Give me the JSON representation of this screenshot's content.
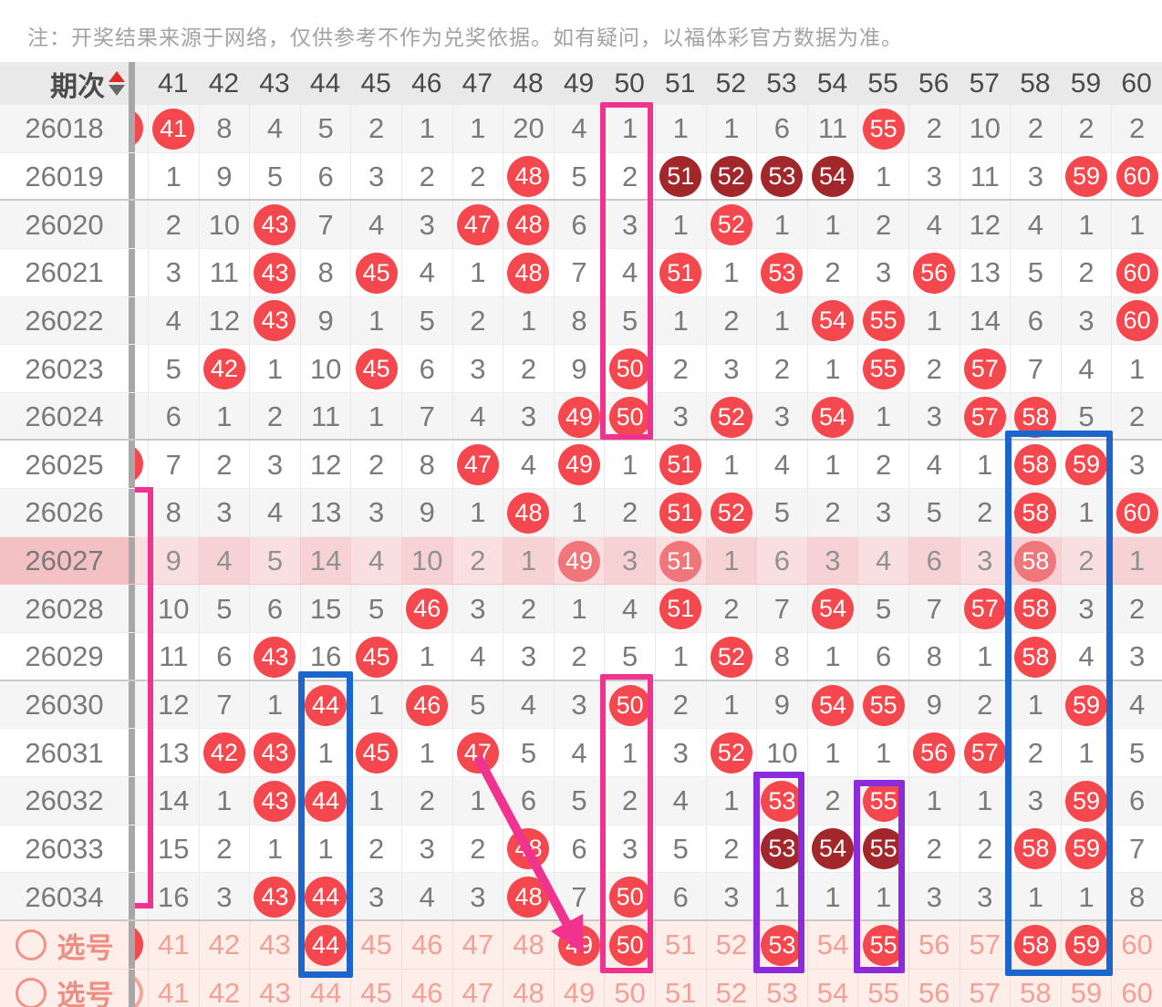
{
  "note": "注：开奖结果来源于网络，仅供参考不作为兑奖依据。如有疑问，以福体彩官方数据为准。",
  "header": {
    "period_label": "期次",
    "sort_icons": [
      "sort-up-icon",
      "sort-down-icon"
    ],
    "columns": [
      "41",
      "42",
      "43",
      "44",
      "45",
      "46",
      "47",
      "48",
      "49",
      "50",
      "51",
      "52",
      "53",
      "54",
      "55",
      "56",
      "57",
      "58",
      "59",
      "60"
    ]
  },
  "legend": {
    "hit_note": "h = drawn number (red circle)",
    "dark_note": "d = consecutive drawn number (dark red circle)"
  },
  "rows": [
    {
      "period": "26018",
      "pre": "hit",
      "cells": [
        "h41",
        "8",
        "4",
        "5",
        "2",
        "1",
        "1",
        "20",
        "4",
        "1",
        "1",
        "1",
        "6",
        "11",
        "h55",
        "2",
        "10",
        "2",
        "2",
        "2"
      ]
    },
    {
      "period": "26019",
      "group_end": true,
      "cells": [
        "1",
        "9",
        "5",
        "6",
        "3",
        "2",
        "2",
        "h48",
        "5",
        "2",
        "d51",
        "d52",
        "d53",
        "d54",
        "1",
        "3",
        "11",
        "3",
        "h59",
        "h60"
      ]
    },
    {
      "period": "26020",
      "cells": [
        "2",
        "10",
        "h43",
        "7",
        "4",
        "3",
        "h47",
        "h48",
        "6",
        "3",
        "1",
        "h52",
        "1",
        "1",
        "2",
        "4",
        "12",
        "4",
        "1",
        "1"
      ]
    },
    {
      "period": "26021",
      "cells": [
        "3",
        "11",
        "h43",
        "8",
        "h45",
        "4",
        "1",
        "h48",
        "7",
        "4",
        "h51",
        "1",
        "h53",
        "2",
        "3",
        "h56",
        "13",
        "5",
        "2",
        "h60"
      ]
    },
    {
      "period": "26022",
      "cells": [
        "4",
        "12",
        "h43",
        "9",
        "1",
        "5",
        "2",
        "1",
        "8",
        "5",
        "1",
        "2",
        "1",
        "h54",
        "h55",
        "1",
        "14",
        "6",
        "3",
        "h60"
      ]
    },
    {
      "period": "26023",
      "cells": [
        "5",
        "h42",
        "1",
        "10",
        "h45",
        "6",
        "3",
        "2",
        "9",
        "h50",
        "2",
        "3",
        "2",
        "1",
        "h55",
        "2",
        "h57",
        "7",
        "4",
        "1"
      ]
    },
    {
      "period": "26024",
      "group_end": true,
      "cells": [
        "6",
        "1",
        "2",
        "11",
        "1",
        "7",
        "4",
        "3",
        "h49",
        "h50",
        "3",
        "h52",
        "3",
        "h54",
        "1",
        "3",
        "h57",
        "h58",
        "5",
        "2"
      ]
    },
    {
      "period": "26025",
      "pre": "hit",
      "cells": [
        "7",
        "2",
        "3",
        "12",
        "2",
        "8",
        "h47",
        "4",
        "h49",
        "1",
        "h51",
        "1",
        "4",
        "1",
        "2",
        "4",
        "1",
        "h58",
        "h59",
        "3"
      ]
    },
    {
      "period": "26026",
      "cells": [
        "8",
        "3",
        "4",
        "13",
        "3",
        "9",
        "1",
        "h48",
        "1",
        "2",
        "h51",
        "h52",
        "5",
        "2",
        "3",
        "5",
        "2",
        "h58",
        "1",
        "h60"
      ]
    },
    {
      "period": "26027",
      "highlight": true,
      "cells": [
        "9",
        "4",
        "5",
        "14",
        "4",
        "10",
        "2",
        "1",
        "h49",
        "3",
        "h51",
        "1",
        "6",
        "3",
        "4",
        "6",
        "3",
        "h58",
        "2",
        "1"
      ]
    },
    {
      "period": "26028",
      "cells": [
        "10",
        "5",
        "6",
        "15",
        "5",
        "h46",
        "3",
        "2",
        "1",
        "4",
        "h51",
        "2",
        "7",
        "h54",
        "5",
        "7",
        "h57",
        "h58",
        "3",
        "2"
      ]
    },
    {
      "period": "26029",
      "group_end": true,
      "cells": [
        "11",
        "6",
        "h43",
        "16",
        "h45",
        "1",
        "4",
        "3",
        "2",
        "5",
        "1",
        "h52",
        "8",
        "1",
        "6",
        "8",
        "1",
        "h58",
        "4",
        "3"
      ]
    },
    {
      "period": "26030",
      "cells": [
        "12",
        "7",
        "1",
        "h44",
        "1",
        "h46",
        "5",
        "4",
        "3",
        "h50",
        "2",
        "1",
        "9",
        "h54",
        "h55",
        "9",
        "2",
        "1",
        "h59",
        "4"
      ]
    },
    {
      "period": "26031",
      "cells": [
        "13",
        "h42",
        "h43",
        "1",
        "h45",
        "1",
        "h47",
        "5",
        "4",
        "1",
        "3",
        "h52",
        "10",
        "1",
        "1",
        "h56",
        "h57",
        "2",
        "1",
        "5"
      ]
    },
    {
      "period": "26032",
      "cells": [
        "14",
        "1",
        "h43",
        "h44",
        "1",
        "2",
        "1",
        "6",
        "5",
        "2",
        "4",
        "1",
        "h53",
        "2",
        "h55",
        "1",
        "1",
        "3",
        "h59",
        "6"
      ]
    },
    {
      "period": "26033",
      "cells": [
        "15",
        "2",
        "1",
        "1",
        "2",
        "3",
        "2",
        "h48",
        "6",
        "3",
        "5",
        "2",
        "d53",
        "d54",
        "d55",
        "2",
        "2",
        "h58",
        "h59",
        "7"
      ]
    },
    {
      "period": "26034",
      "group_end": true,
      "cells": [
        "16",
        "3",
        "h43",
        "h44",
        "3",
        "4",
        "3",
        "h48",
        "7",
        "h50",
        "6",
        "3",
        "1",
        "1",
        "1",
        "3",
        "3",
        "1",
        "1",
        "8"
      ]
    }
  ],
  "selection_rows": [
    {
      "label": "选号",
      "pre": "hit",
      "cells": [
        "41",
        "42",
        "43",
        "h44",
        "45",
        "46",
        "47",
        "48",
        "h49",
        "h50",
        "51",
        "52",
        "h53",
        "54",
        "h55",
        "56",
        "57",
        "h58",
        "h59",
        "60"
      ]
    },
    {
      "label": "选号",
      "pre": "ring",
      "cells": [
        "41",
        "42",
        "43",
        "44",
        "45",
        "46",
        "47",
        "48",
        "49",
        "50",
        "51",
        "52",
        "53",
        "54",
        "55",
        "56",
        "57",
        "58",
        "59",
        "60"
      ]
    }
  ],
  "annotations": {
    "frames": [
      {
        "name": "frame-pink-col50-top",
        "color": "#f0338f"
      },
      {
        "name": "frame-pink-col40-left",
        "color": "#f0338f"
      },
      {
        "name": "frame-pink-col50-bottom",
        "color": "#f0338f"
      },
      {
        "name": "frame-blue-col44",
        "color": "#1b66cc"
      },
      {
        "name": "frame-blue-col58-59",
        "color": "#1b66cc"
      },
      {
        "name": "frame-purple-col53",
        "color": "#8c2bdb"
      },
      {
        "name": "frame-purple-col55",
        "color": "#8c2bdb"
      }
    ],
    "arrow": {
      "name": "trend-arrow",
      "color": "#f0338f",
      "from_value": "47",
      "to_value": "49"
    }
  },
  "colors": {
    "hit_circle": "#f5484e",
    "consecutive_circle": "#a1272b",
    "faded_circle": "#ef767b",
    "highlight_row_bg": "#fadfe1",
    "selection_row_bg": "#fdeee9",
    "selection_text": "#f4a096",
    "header_bg": "#e9e9e9",
    "divider": "#a8a8a8",
    "pink_frame": "#f0338f",
    "blue_frame": "#1b66cc",
    "purple_frame": "#8c2bdb"
  }
}
